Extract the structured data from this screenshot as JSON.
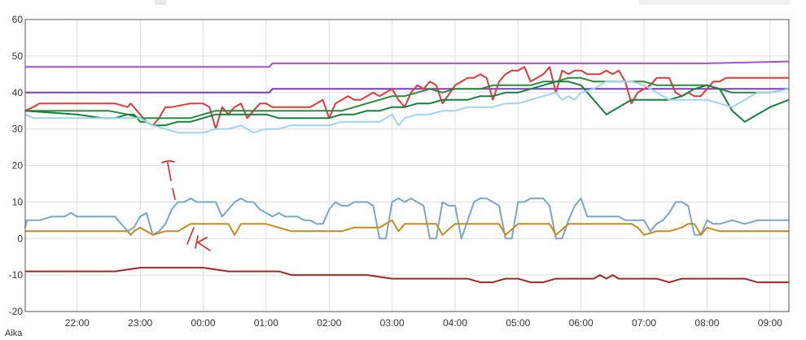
{
  "chart_data": {
    "type": "line",
    "xlabel": "Aika",
    "ylim": [
      -20,
      60
    ],
    "yticks": [
      -20,
      -10,
      0,
      10,
      20,
      30,
      40,
      50,
      60
    ],
    "xlim": [
      -8.25,
      113
    ],
    "xticks": [
      {
        "label": "22:00",
        "x": 0
      },
      {
        "label": "23:00",
        "x": 10
      },
      {
        "label": "00:00",
        "x": 20
      },
      {
        "label": "01:00",
        "x": 30
      },
      {
        "label": "02:00",
        "x": 40
      },
      {
        "label": "03:00",
        "x": 50
      },
      {
        "label": "04:00",
        "x": 60
      },
      {
        "label": "05:00",
        "x": 70
      },
      {
        "label": "06:00",
        "x": 80
      },
      {
        "label": "07:00",
        "x": 90
      },
      {
        "label": "08:00",
        "x": 100
      },
      {
        "label": "09:00",
        "x": 110
      }
    ],
    "grid": true,
    "series": [
      {
        "color": "#a64ee0",
        "x": [
          -8.25,
          3.75,
          5,
          11,
          30.5,
          31,
          40,
          60,
          80,
          100,
          113
        ],
        "y": [
          47,
          47,
          47,
          47,
          47,
          48,
          48,
          48,
          48,
          48,
          48.5
        ]
      },
      {
        "color": "#7a3fb0",
        "x": [
          -8.25,
          10,
          20,
          30.5,
          31,
          40,
          60,
          80,
          100,
          113
        ],
        "y": [
          40,
          40,
          40,
          40,
          41,
          41,
          41,
          41,
          41,
          41
        ]
      },
      {
        "color": "#e03a3a",
        "x": [
          -8.25,
          -7,
          -6,
          -2,
          0,
          3,
          6,
          8,
          8.5,
          9,
          11,
          12,
          13,
          14,
          15,
          18,
          19,
          20,
          21,
          22,
          23,
          24,
          25,
          26,
          27,
          28,
          29,
          30,
          31,
          35,
          37,
          38,
          39,
          40,
          41,
          42,
          43,
          44,
          45,
          46,
          47,
          48,
          49,
          50,
          51,
          52,
          53,
          54,
          55,
          56,
          57,
          58,
          60,
          62,
          63,
          64,
          65,
          66,
          67,
          68,
          69,
          70,
          71,
          72,
          73,
          74,
          75,
          76,
          77,
          78,
          79,
          80,
          81,
          83,
          84,
          85,
          86,
          87,
          88,
          89,
          90,
          91,
          92,
          93,
          94,
          95,
          96,
          97,
          98,
          99,
          100,
          101,
          102,
          103,
          104,
          105,
          107,
          110,
          113
        ],
        "y": [
          35,
          36,
          37,
          37,
          37,
          37,
          37,
          36,
          37,
          36,
          32,
          31,
          33,
          36,
          36,
          37,
          37,
          37,
          36,
          30,
          36,
          34,
          36,
          37,
          33,
          35,
          37,
          37,
          36,
          36,
          36,
          37,
          38,
          33,
          37,
          38,
          39,
          38,
          38,
          39,
          40,
          39,
          40,
          41,
          38,
          36,
          40,
          42,
          41,
          43,
          42,
          37,
          42,
          44,
          44,
          45,
          44,
          38,
          43,
          45,
          46,
          46,
          47,
          43,
          44,
          45,
          47,
          40,
          46,
          45,
          46,
          46,
          45,
          45,
          46,
          45,
          46,
          43,
          37,
          40,
          41,
          42,
          44,
          44,
          44,
          40,
          39,
          40,
          39,
          39,
          41,
          43,
          43,
          44,
          44,
          44,
          44,
          44,
          44
        ]
      },
      {
        "color": "#2a8a3a",
        "x": [
          -8.25,
          0,
          5,
          8,
          10,
          12,
          14,
          18,
          20,
          22,
          24,
          26,
          28,
          30,
          32,
          36,
          38,
          40,
          42,
          44,
          46,
          48,
          50,
          52,
          54,
          56,
          58,
          60,
          62,
          64,
          66,
          68,
          70,
          72,
          74,
          76,
          78,
          80,
          82,
          84,
          86,
          88,
          90,
          92,
          94,
          96,
          98,
          100,
          102,
          104,
          106,
          108,
          110,
          113
        ],
        "y": [
          35,
          35,
          35,
          34,
          33,
          33,
          33,
          33,
          34,
          35,
          35,
          35,
          35,
          35,
          35,
          35,
          35,
          35,
          35,
          36,
          37,
          38,
          39,
          39,
          40,
          41,
          40,
          41,
          41,
          41,
          42,
          42,
          42,
          42,
          43,
          43,
          44,
          44,
          43,
          43,
          43,
          43,
          43,
          42,
          42,
          42,
          42,
          42,
          41,
          40,
          40,
          40,
          40,
          41
        ]
      },
      {
        "color": "#15803d",
        "x": [
          -8.25,
          0,
          4,
          6,
          8,
          9,
          10,
          11,
          12,
          14,
          16,
          18,
          20,
          22,
          24,
          26,
          28,
          30,
          32,
          34,
          36,
          38,
          40,
          42,
          44,
          46,
          48,
          50,
          52,
          54,
          56,
          58,
          60,
          62,
          64,
          66,
          68,
          70,
          72,
          74,
          76,
          78,
          80,
          82,
          84,
          86,
          88,
          90,
          92,
          94,
          96,
          98,
          100,
          102,
          104,
          106,
          108,
          110,
          113
        ],
        "y": [
          35,
          34,
          33,
          33,
          34,
          34,
          32,
          32,
          31,
          31,
          32,
          32,
          33,
          34,
          34,
          34,
          34,
          34,
          33,
          33,
          33,
          33,
          33,
          34,
          34,
          35,
          35,
          36,
          36,
          37,
          37,
          38,
          38,
          38,
          39,
          39,
          40,
          40,
          41,
          42,
          43,
          43,
          42,
          38,
          34,
          36,
          38,
          38,
          38,
          38,
          39,
          41,
          42,
          41,
          35,
          32,
          34,
          36,
          38
        ]
      },
      {
        "color": "#9fd4ee",
        "x": [
          -8.25,
          -7,
          -5,
          0,
          5,
          8,
          10,
          12,
          14,
          16,
          18,
          20,
          22,
          24,
          26,
          28,
          30,
          32,
          34,
          36,
          38,
          40,
          42,
          44,
          46,
          48,
          50,
          51,
          52,
          54,
          56,
          58,
          60,
          62,
          64,
          66,
          68,
          70,
          72,
          74,
          76,
          77,
          78,
          79,
          80,
          82,
          84,
          86,
          88,
          90,
          92,
          94,
          96,
          98,
          100,
          102,
          104,
          106,
          108,
          110,
          113
        ],
        "y": [
          34,
          33,
          33,
          33,
          33,
          33,
          33,
          31,
          30,
          29,
          29,
          29,
          30,
          30,
          31,
          29,
          30,
          30,
          31,
          31,
          31,
          31,
          32,
          32,
          32,
          32,
          34,
          31,
          33,
          34,
          34,
          35,
          35,
          36,
          36,
          36,
          37,
          37,
          38,
          39,
          40,
          38,
          39,
          38,
          40,
          41,
          43,
          43,
          43,
          42,
          40,
          38,
          38,
          38,
          38,
          37,
          36,
          38,
          40,
          40,
          41
        ]
      },
      {
        "color": "#7aa7c4",
        "x": [
          -8.25,
          -8,
          -7,
          -6,
          -4,
          -2,
          -1,
          0,
          2,
          3,
          4,
          6,
          7,
          8,
          9,
          10,
          11,
          12,
          13,
          14,
          15,
          16,
          17,
          18,
          19,
          20,
          21,
          22,
          23,
          24,
          25,
          26,
          27,
          28,
          29,
          30,
          31,
          32,
          33,
          35,
          36,
          37,
          38,
          39,
          40,
          41,
          42,
          43,
          44,
          46,
          47,
          48,
          49,
          50,
          51,
          52,
          53,
          54,
          55,
          56,
          57,
          58,
          59,
          60,
          61,
          62,
          63,
          64,
          65,
          66,
          67,
          68,
          69,
          70,
          71,
          72,
          73,
          74,
          75,
          76,
          77,
          78,
          79,
          80,
          81,
          82,
          83,
          84,
          85,
          86,
          87,
          88,
          89,
          90,
          91,
          92,
          93,
          94,
          95,
          96,
          97,
          98,
          99,
          100,
          101,
          102,
          104,
          106,
          108,
          110,
          113
        ],
        "y": [
          3,
          5,
          5,
          5,
          6,
          6,
          7,
          6,
          6,
          6,
          6,
          6,
          4,
          2,
          3,
          6,
          7,
          1,
          2,
          4,
          8,
          10,
          10,
          11,
          10,
          10,
          10,
          10,
          6,
          8,
          10,
          11,
          10,
          10,
          8,
          7,
          6,
          7,
          6,
          6,
          5,
          5,
          4,
          4,
          8,
          10,
          9,
          9,
          10,
          10,
          9,
          0,
          0,
          10,
          11,
          10,
          11,
          10,
          9,
          0,
          0,
          10,
          9,
          9,
          0,
          5,
          10,
          11,
          11,
          10,
          9,
          0,
          0,
          10,
          10,
          11,
          11,
          11,
          9,
          0,
          0,
          5,
          9,
          11,
          6,
          6,
          6,
          6,
          6,
          6,
          5,
          5,
          5,
          5,
          2,
          4,
          5,
          7,
          10,
          10,
          9,
          1,
          1,
          5,
          4,
          4,
          5,
          4,
          5,
          5,
          5
        ]
      },
      {
        "color": "#c68a1f",
        "x": [
          -8.25,
          -6,
          -4,
          0,
          4,
          6,
          8,
          8.5,
          9,
          10,
          11,
          12,
          14,
          16,
          17,
          18,
          20,
          22,
          24,
          25,
          26,
          28,
          30,
          32,
          34,
          36,
          38,
          40,
          42,
          44,
          46,
          48,
          49,
          50,
          51,
          52,
          54,
          56,
          57,
          58,
          60,
          62,
          64,
          66,
          67,
          68,
          70,
          72,
          74,
          75,
          76,
          78,
          80,
          82,
          84,
          86,
          88,
          89,
          90,
          92,
          94,
          96,
          97,
          98,
          99,
          100,
          102,
          104,
          106,
          108,
          110,
          113
        ],
        "y": [
          2,
          2,
          2,
          2,
          2,
          2,
          2,
          1,
          2,
          3,
          2,
          1,
          2,
          2,
          3,
          4,
          4,
          4,
          4,
          1,
          4,
          4,
          4,
          3,
          2,
          2,
          2,
          2,
          2,
          3,
          3,
          3,
          4,
          5,
          2,
          4,
          4,
          4,
          4,
          1,
          4,
          4,
          4,
          4,
          4,
          1,
          4,
          4,
          4,
          4,
          1,
          4,
          4,
          4,
          4,
          4,
          4,
          3,
          1,
          2,
          2,
          3,
          4,
          4,
          1,
          3,
          2,
          2,
          2,
          2,
          2,
          2
        ]
      },
      {
        "color": "#a32626",
        "x": [
          -8.25,
          0,
          6,
          10,
          11,
          15,
          17,
          20,
          24,
          26,
          30,
          32,
          34,
          40,
          44,
          46,
          50,
          52,
          56,
          60,
          62,
          64,
          66,
          68,
          70,
          72,
          74,
          76,
          78,
          80,
          82,
          83,
          84,
          85,
          86,
          87,
          88,
          90,
          92,
          94,
          96,
          98,
          100,
          102,
          104,
          106,
          108,
          110,
          113
        ],
        "y": [
          -9,
          -9,
          -9,
          -8,
          -8,
          -8,
          -8,
          -8,
          -9,
          -9,
          -9,
          -9,
          -10,
          -10,
          -10,
          -10,
          -11,
          -11,
          -11,
          -11,
          -11,
          -12,
          -12,
          -11,
          -11,
          -12,
          -12,
          -11,
          -11,
          -11,
          -11,
          -10,
          -11,
          -10,
          -11,
          -11,
          -11,
          -11,
          -11,
          -12,
          -11,
          -11,
          -11,
          -11,
          -11,
          -11,
          -12,
          -12,
          -12
        ]
      }
    ]
  }
}
